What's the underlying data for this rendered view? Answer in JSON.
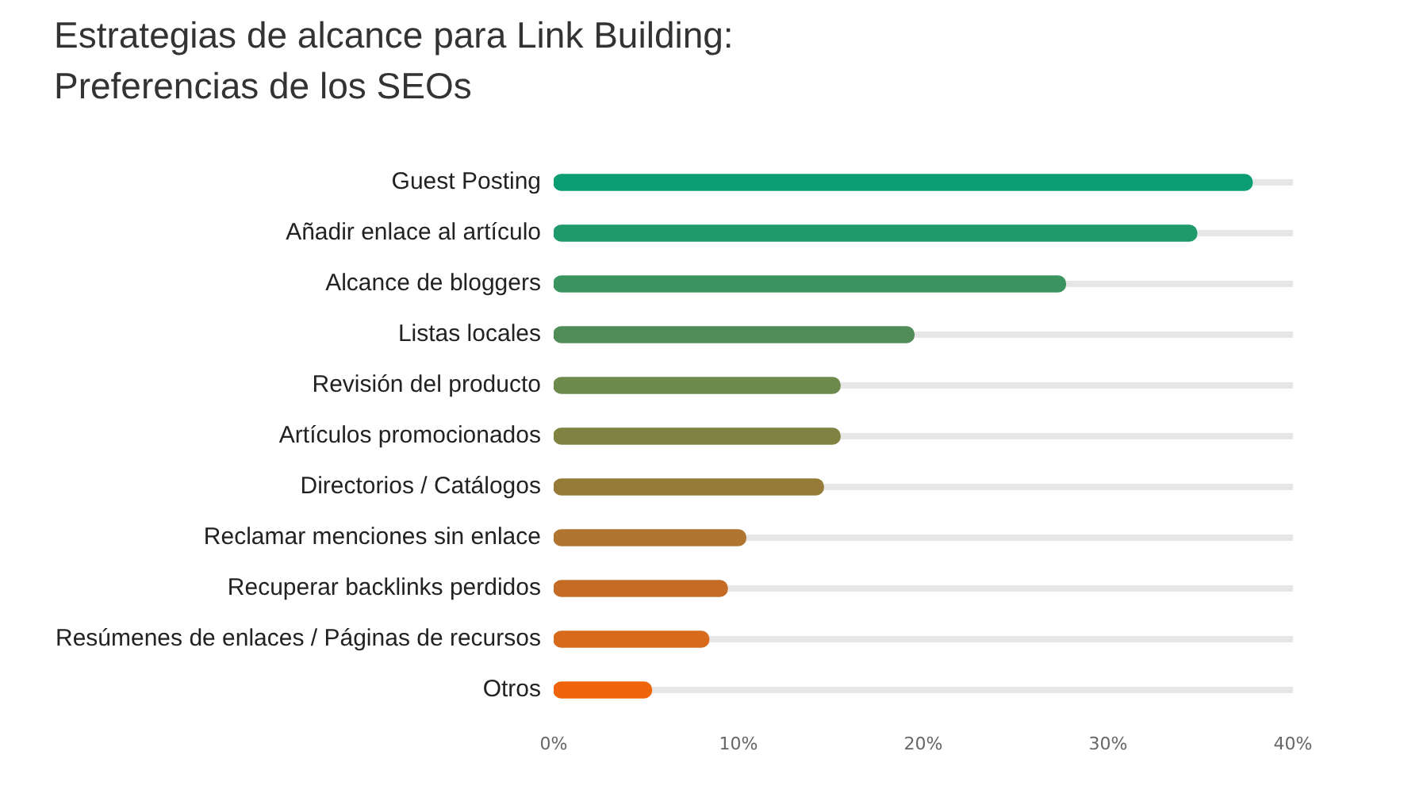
{
  "chart_data": {
    "type": "bar",
    "orientation": "horizontal",
    "title": "Estrategias de alcance para Link Building: Preferencias de los SEOs",
    "categories": [
      "Guest Posting",
      "Añadir enlace al artículo",
      "Alcance de bloggers",
      "Listas locales",
      "Revisión del producto",
      "Artículos promocionados",
      "Directorios / Catálogos",
      "Reclamar menciones sin enlace",
      "Recuperar backlinks perdidos",
      "Resúmenes de enlaces / Páginas de recursos",
      "Otros"
    ],
    "values": [
      37.8,
      34.8,
      27.7,
      19.5,
      15.5,
      15.5,
      14.6,
      10.4,
      9.4,
      8.4,
      5.3
    ],
    "colors": [
      "#0a9e72",
      "#1f9a6a",
      "#3a9460",
      "#4f8c57",
      "#6b8a4c",
      "#7f8240",
      "#967a38",
      "#b07530",
      "#c46c26",
      "#d86a1c",
      "#f0650a"
    ],
    "xlim": [
      0,
      40
    ],
    "xticks": [
      {
        "value": 0,
        "label": "0%"
      },
      {
        "value": 10,
        "label": "10%"
      },
      {
        "value": 20,
        "label": "20%"
      },
      {
        "value": 30,
        "label": "30%"
      },
      {
        "value": 40,
        "label": "40%"
      }
    ],
    "grid": "y",
    "legend": false
  }
}
